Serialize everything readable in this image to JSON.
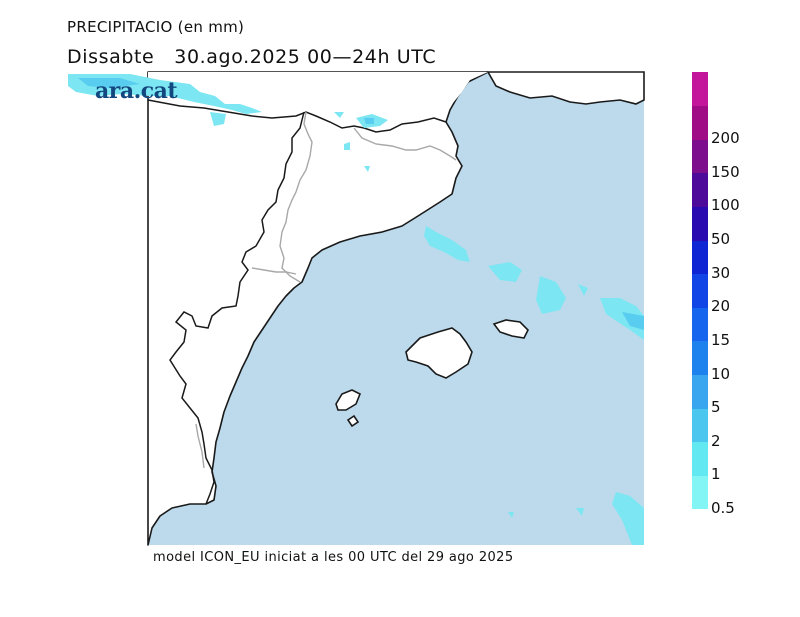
{
  "map": {
    "title": "PRECIPITACIO (en mm)",
    "subtitle": "Dissabte   30.ago.2025 00—24h UTC",
    "footer": "model ICON_EU iniciat a les 00 UTC del 29 ago 2025",
    "logo": "ara.cat",
    "colors": {
      "sea": "#bcdaec",
      "land": "#ffffff",
      "coast": "#1a1a1a",
      "borders": "#a8a8a8",
      "rain_light": "#7ce7f2",
      "rain_mid": "#58cdf0",
      "logo": "#13477f"
    }
  },
  "legend": {
    "levels": [
      "0.5",
      "1",
      "2",
      "5",
      "10",
      "15",
      "20",
      "30",
      "50",
      "100",
      "150",
      "200"
    ],
    "colors": [
      "#83f5f5",
      "#62e8f0",
      "#4bc6ef",
      "#3aa6ef",
      "#1e82ee",
      "#1565ef",
      "#1145e5",
      "#0d25d2",
      "#2a0ab0",
      "#4d0a9a",
      "#7d0d8c",
      "#a00b86",
      "#c4169a"
    ]
  }
}
